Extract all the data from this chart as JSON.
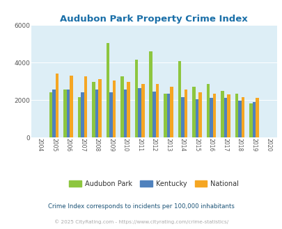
{
  "title": "Audubon Park Property Crime Index",
  "years": [
    2004,
    2005,
    2006,
    2007,
    2008,
    2009,
    2010,
    2011,
    2012,
    2013,
    2014,
    2015,
    2016,
    2017,
    2018,
    2019,
    2020
  ],
  "audubon_park": [
    null,
    2400,
    2550,
    2150,
    2950,
    5050,
    3250,
    4150,
    4600,
    2350,
    4100,
    2700,
    2850,
    2500,
    2350,
    1800,
    null
  ],
  "kentucky": [
    null,
    2550,
    2550,
    2400,
    2550,
    2400,
    2550,
    2650,
    2450,
    2350,
    2150,
    2050,
    2100,
    2100,
    1950,
    1900,
    null
  ],
  "national": [
    null,
    3400,
    3300,
    3250,
    3100,
    3050,
    2950,
    2850,
    2850,
    2700,
    2550,
    2400,
    2350,
    2300,
    2150,
    2100,
    null
  ],
  "ylim": [
    0,
    6000
  ],
  "yticks": [
    0,
    2000,
    4000,
    6000
  ],
  "bar_width": 0.22,
  "audubon_color": "#8dc63f",
  "kentucky_color": "#4f81bd",
  "national_color": "#f5a623",
  "bg_color": "#ddeef6",
  "title_color": "#1a6fa8",
  "subtitle": "Crime Index corresponds to incidents per 100,000 inhabitants",
  "footer": "© 2025 CityRating.com - https://www.cityrating.com/crime-statistics/",
  "grid_color": "#ffffff",
  "subtitle_color": "#1a5276",
  "footer_color": "#aaaaaa"
}
